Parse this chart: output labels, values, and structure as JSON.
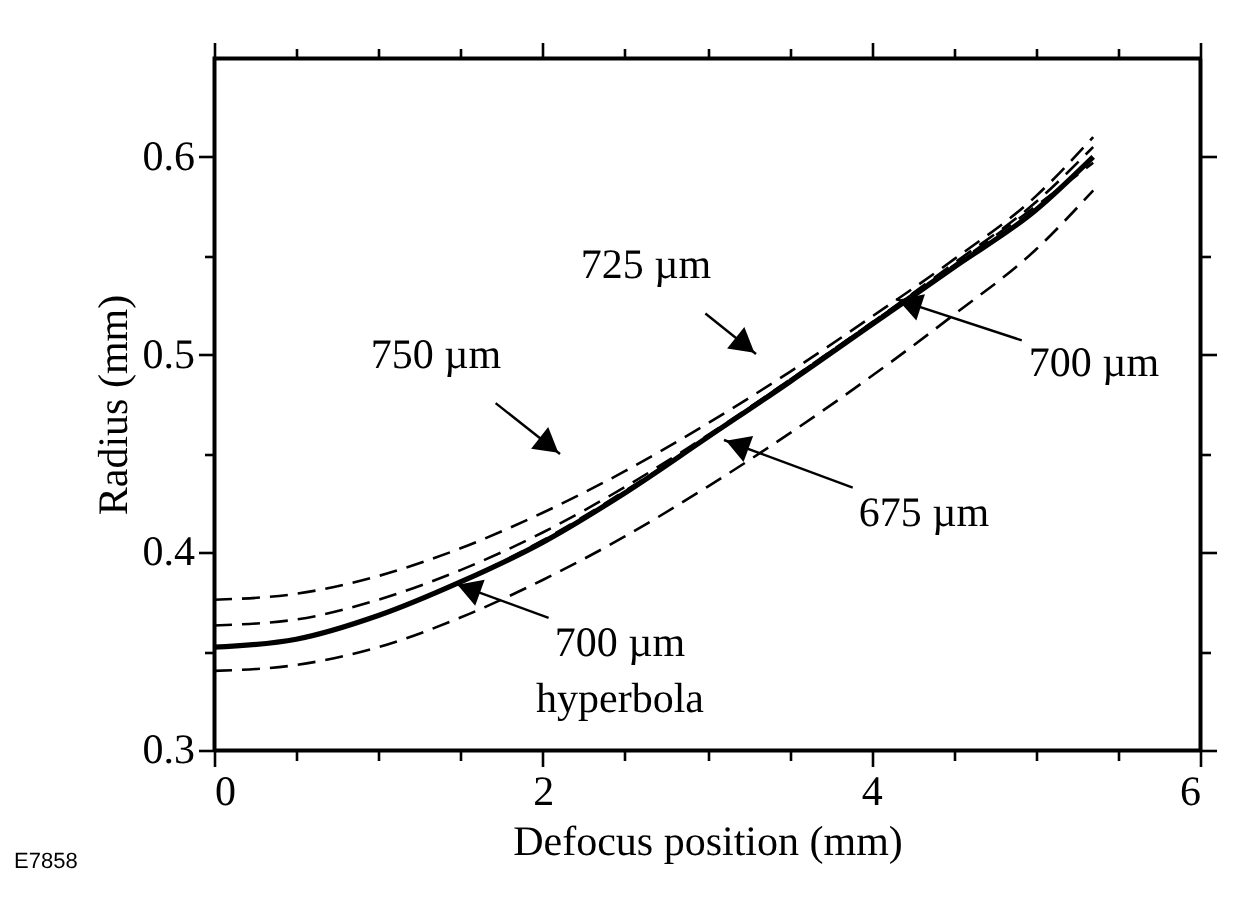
{
  "chart_data": {
    "type": "line",
    "xlabel": "Defocus position (mm)",
    "ylabel": "Radius (mm)",
    "x": [
      0,
      0.5,
      1,
      1.5,
      2,
      2.5,
      3,
      3.5,
      4,
      4.5,
      5,
      5.35
    ],
    "series": [
      {
        "color": "#000000",
        "line_style": "dashed",
        "values": [
          0.376,
          0.379,
          0.388,
          0.402,
          0.42,
          0.441,
          0.465,
          0.491,
          0.519,
          0.548,
          0.58,
          0.61
        ]
      },
      {
        "color": "#000000",
        "line_style": "dashed",
        "values": [
          0.363,
          0.366,
          0.376,
          0.391,
          0.41,
          0.433,
          0.459,
          0.487,
          0.516,
          0.546,
          0.577,
          0.605
        ]
      },
      {
        "color": "#000000",
        "line_style": "dashed",
        "values": [
          0.352,
          0.356,
          0.368,
          0.385,
          0.406,
          0.431,
          0.458,
          0.487,
          0.516,
          0.545,
          0.575,
          0.597
        ]
      },
      {
        "color": "#000000",
        "line_style": "solid",
        "values": [
          0.352,
          0.356,
          0.368,
          0.385,
          0.405,
          0.43,
          0.458,
          0.486,
          0.515,
          0.544,
          0.573,
          0.6
        ]
      },
      {
        "color": "#000000",
        "line_style": "dashed",
        "values": [
          0.34,
          0.343,
          0.352,
          0.367,
          0.386,
          0.408,
          0.433,
          0.46,
          0.489,
          0.52,
          0.553,
          0.583
        ]
      }
    ],
    "xlim": [
      0,
      6
    ],
    "ylim": [
      0.3,
      0.65
    ],
    "xticks": [
      0,
      {
        "value": 0.5,
        "label": null
      },
      {
        "value": 1,
        "label": null
      },
      {
        "value": 1.5,
        "label": null
      },
      2,
      {
        "value": 2.5,
        "label": null
      },
      {
        "value": 3,
        "label": null
      },
      {
        "value": 3.5,
        "label": null
      },
      4,
      {
        "value": 4.5,
        "label": null
      },
      {
        "value": 5,
        "label": null
      },
      {
        "value": 5.5,
        "label": null
      },
      6
    ],
    "yticks": [
      0.3,
      {
        "value": 0.35,
        "label": null
      },
      0.4,
      {
        "value": 0.45,
        "label": null
      },
      0.5,
      {
        "value": 0.55,
        "label": null
      },
      0.6
    ],
    "annotations": [
      "750 µm",
      "725 µm",
      {
        "text": "700 µm",
        "x": 4.15,
        "y": 0.528
      },
      "675 µm",
      {
        "text": "700 µm\nhyperbola",
        "x": 1.47,
        "y": 0.384
      },
      "E7858"
    ]
  }
}
